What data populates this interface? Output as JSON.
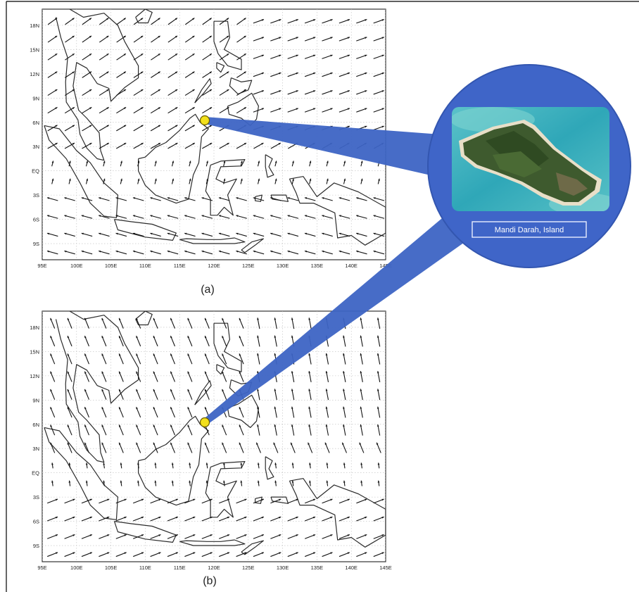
{
  "figure": {
    "panel_a": {
      "caption": "(a)",
      "lat_ticks": [
        "18N",
        "15N",
        "12N",
        "9N",
        "6N",
        "3N",
        "EQ",
        "3S",
        "6S",
        "9S"
      ],
      "lon_ticks": [
        "95E",
        "100E",
        "105E",
        "110E",
        "115E",
        "120E",
        "125E",
        "130E",
        "135E",
        "140E",
        "145E"
      ],
      "wind_direction": "southwesterly over South China Sea; southeasterly south of equator"
    },
    "panel_b": {
      "caption": "(b)",
      "lat_ticks": [
        "18N",
        "15N",
        "12N",
        "9N",
        "6N",
        "3N",
        "EQ",
        "3S",
        "6S",
        "9S"
      ],
      "lon_ticks": [
        "95E",
        "100E",
        "105E",
        "110E",
        "115E",
        "120E",
        "125E",
        "130E",
        "135E",
        "140E",
        "145E"
      ],
      "wind_direction": "northeasterly over South China Sea; northwesterly south of equator"
    },
    "site": {
      "lat": 7.1,
      "lon": 117.3,
      "marker_color": "#f2e01c"
    },
    "callout": {
      "label": "Mandi Darah, Island",
      "disc_color": "#3f65c8"
    }
  }
}
